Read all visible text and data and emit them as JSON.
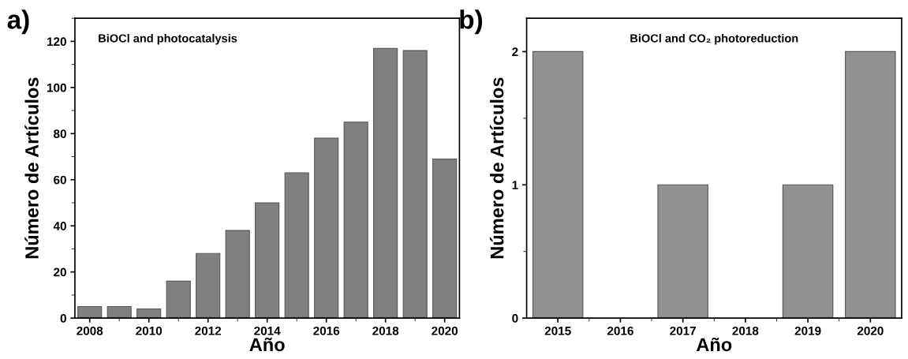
{
  "chart_data": [
    {
      "type": "bar",
      "title": "BiOCl and photocatalysis",
      "xlabel": "Año",
      "ylabel": "Número de Artículos",
      "annotations": [
        "a)"
      ],
      "x": [
        2008,
        2009,
        2010,
        2011,
        2012,
        2013,
        2014,
        2015,
        2016,
        2017,
        2018,
        2019,
        2020
      ],
      "values": [
        5,
        5,
        4,
        16,
        28,
        38,
        50,
        63,
        78,
        85,
        117,
        116,
        69
      ],
      "color": "#808080",
      "xlim": [
        2007.5,
        2020.5
      ],
      "xticks": [
        2008,
        2010,
        2012,
        2014,
        2016,
        2018,
        2020
      ],
      "ylim": [
        0,
        130
      ],
      "yticks": [
        0,
        20,
        40,
        60,
        80,
        100,
        120
      ],
      "grid": false
    },
    {
      "type": "bar",
      "title": "BiOCl and CO₂ photoreduction",
      "xlabel": "Año",
      "ylabel": "Número de Artículos",
      "annotations": [
        "b)"
      ],
      "categories": [
        "2015",
        "2016",
        "2017",
        "2018",
        "2019",
        "2020"
      ],
      "values": [
        2,
        0,
        1,
        0,
        1,
        2
      ],
      "color": "#929292",
      "ylim": [
        0,
        2.25
      ],
      "yticks": [
        0,
        1,
        2
      ],
      "grid": false
    }
  ]
}
